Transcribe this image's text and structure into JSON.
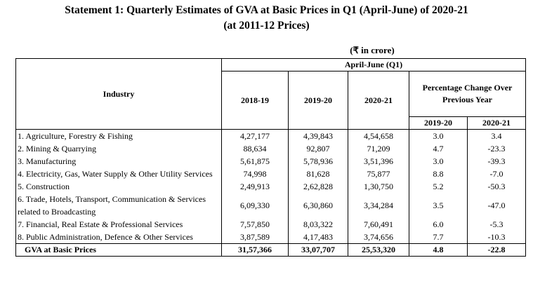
{
  "title": "Statement 1: Quarterly Estimates of GVA at Basic Prices in Q1 (April-June) of 2020-21",
  "subtitle": "(at 2011-12 Prices)",
  "unit": "(₹ in crore)",
  "header": {
    "industry": "Industry",
    "period": "April-June (Q1)",
    "years": [
      "2018-19",
      "2019-20",
      "2020-21"
    ],
    "pct_title": "Percentage Change Over Previous Year",
    "pct_years": [
      "2019-20",
      "2020-21"
    ]
  },
  "rows": [
    [
      "1. Agriculture, Forestry & Fishing",
      "4,27,177",
      "4,39,843",
      "4,54,658",
      "3.0",
      "3.4"
    ],
    [
      "2. Mining & Quarrying",
      "88,634",
      "92,807",
      "71,209",
      "4.7",
      "-23.3"
    ],
    [
      "3. Manufacturing",
      "5,61,875",
      "5,78,936",
      "3,51,396",
      "3.0",
      "-39.3"
    ],
    [
      "4. Electricity, Gas, Water Supply & Other Utility Services",
      "74,998",
      "81,628",
      "75,877",
      "8.8",
      "-7.0"
    ],
    [
      "5. Construction",
      "2,49,913",
      "2,62,828",
      "1,30,750",
      "5.2",
      "-50.3"
    ],
    [
      "6. Trade, Hotels, Transport, Communication & Services related to Broadcasting",
      "6,09,330",
      "6,30,860",
      "3,34,284",
      "3.5",
      "-47.0"
    ],
    [
      "7. Financial, Real Estate & Professional Services",
      "7,57,850",
      "8,03,322",
      "7,60,491",
      "6.0",
      "-5.3"
    ],
    [
      "8. Public Administration, Defence & Other Services",
      "3,87,589",
      "4,17,483",
      "3,74,656",
      "7.7",
      "-10.3"
    ]
  ],
  "total": [
    "GVA at Basic Prices",
    "31,57,366",
    "33,07,707",
    "25,53,320",
    "4.8",
    "-22.8"
  ]
}
